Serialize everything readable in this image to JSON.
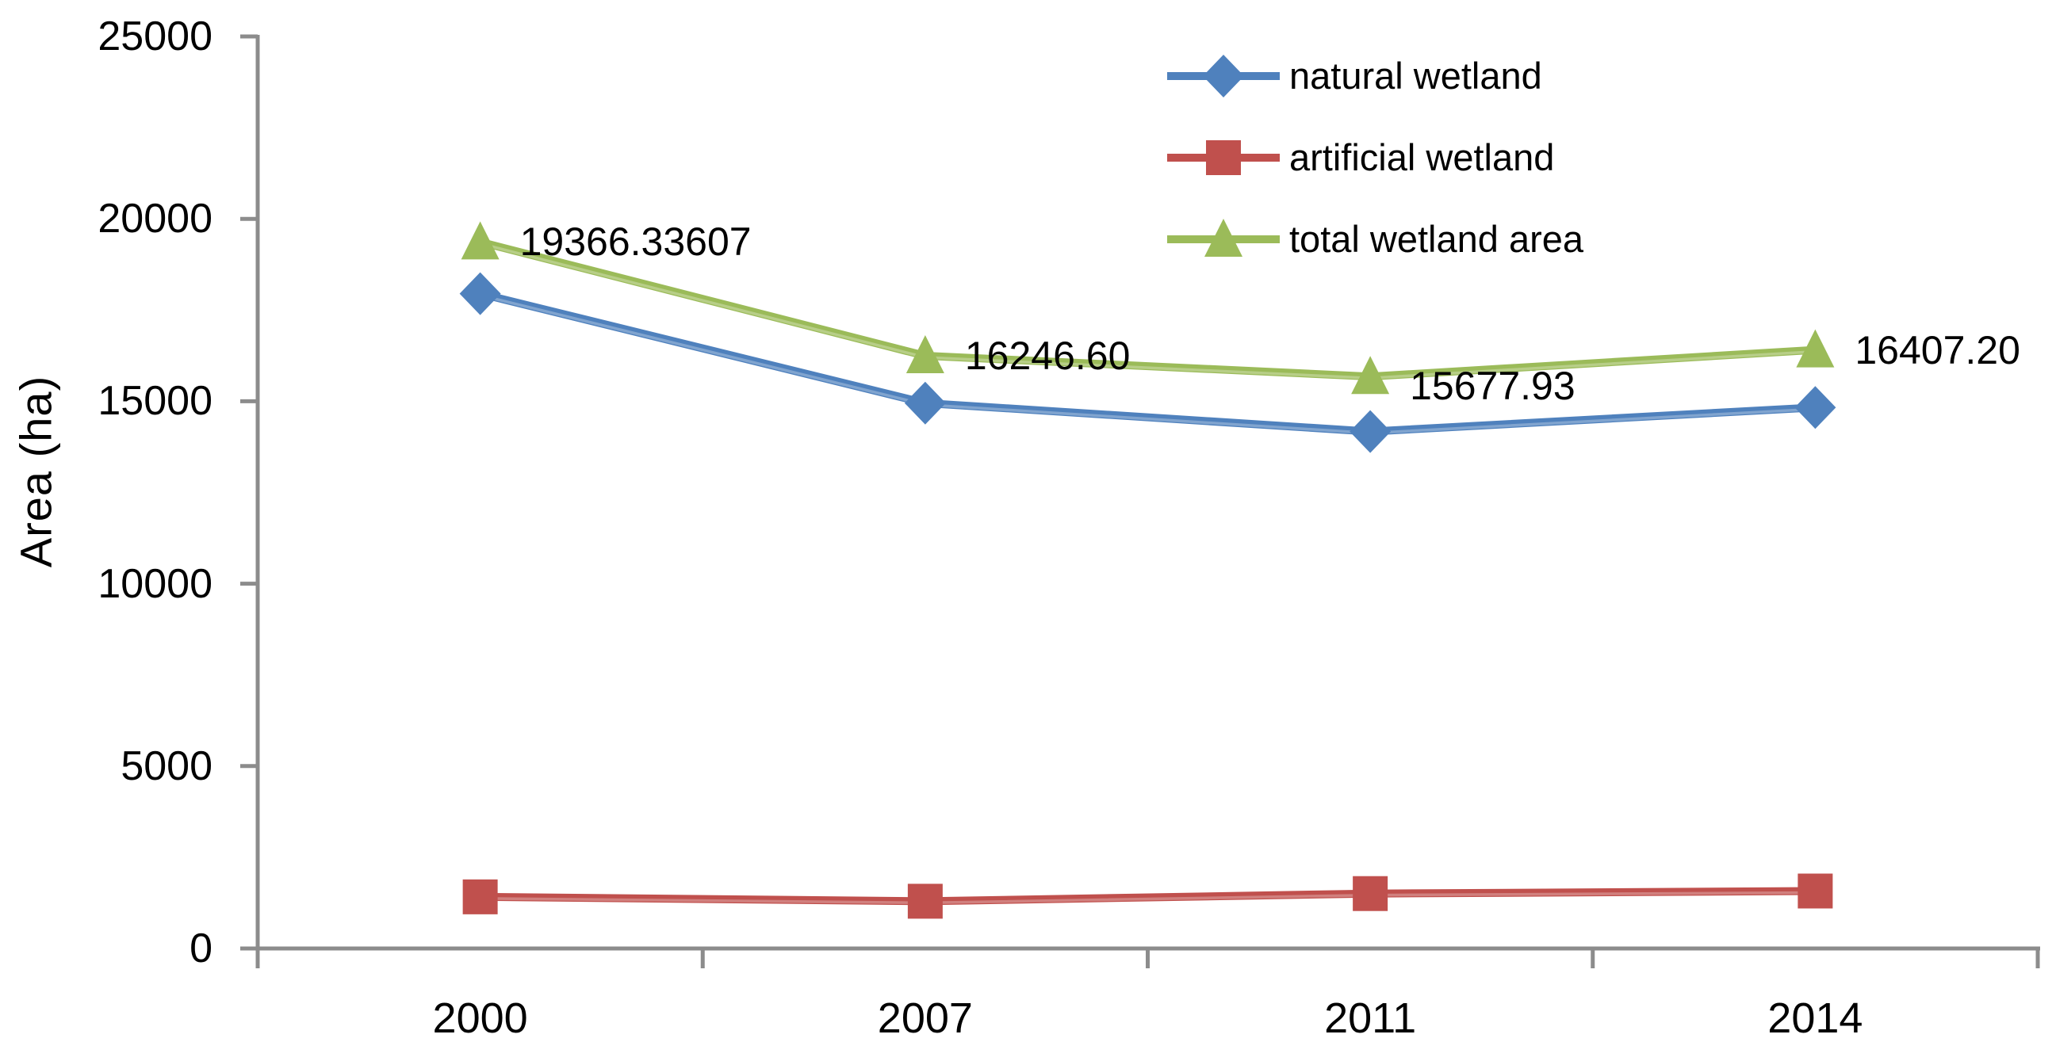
{
  "chart_data": {
    "type": "line",
    "title": "",
    "ylabel": "Area (ha)",
    "xlabel": "",
    "categories": [
      "2000",
      "2007",
      "2011",
      "2014"
    ],
    "series": [
      {
        "name": "natural wetland",
        "color": "#4F81BD",
        "marker": "diamond",
        "values": [
          17950,
          14950,
          14170,
          14830
        ]
      },
      {
        "name": "artificial wetland",
        "color": "#C0504D",
        "marker": "square",
        "values": [
          1415,
          1295,
          1505,
          1575
        ]
      },
      {
        "name": "total wetland area",
        "color": "#9BBB59",
        "marker": "triangle",
        "values": [
          19366.33607,
          16246.6,
          15677.93,
          16407.2
        ],
        "data_labels": [
          "19366.33607",
          "16246.60",
          "15677.93",
          "16407.20"
        ]
      }
    ],
    "y_axis": {
      "min": 0,
      "max": 25000,
      "step": 5000,
      "tick_labels": [
        "0",
        "5000",
        "10000",
        "15000",
        "20000",
        "25000"
      ]
    },
    "x_axis": {
      "tick_labels": [
        "2000",
        "2007",
        "2011",
        "2014"
      ]
    },
    "legend": {
      "position": "upper-right",
      "items": [
        "natural wetland",
        "artificial wetland",
        "total wetland area"
      ]
    },
    "grid": false,
    "axis_color": "#8C8C8C",
    "text_color": "#000000",
    "background": "#FFFFFF"
  }
}
